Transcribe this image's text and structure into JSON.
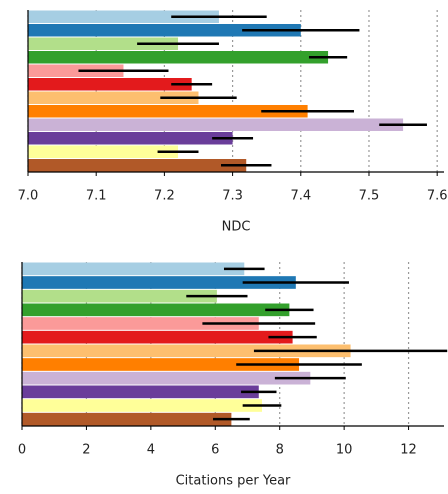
{
  "chart_data": [
    {
      "type": "bar",
      "orientation": "horizontal",
      "xlabel": "NDC",
      "categories": [
        null,
        null,
        null,
        null,
        null,
        null,
        null,
        null,
        null,
        null,
        null,
        null
      ],
      "values": [
        7.28,
        7.4,
        7.22,
        7.44,
        7.14,
        7.24,
        7.25,
        7.41,
        7.55,
        7.3,
        7.22,
        7.32
      ],
      "errors": [
        0.07,
        0.086,
        0.06,
        0.028,
        0.066,
        0.03,
        0.056,
        0.068,
        0.035,
        0.03,
        0.03,
        0.037
      ],
      "colors": [
        "#a6cee3",
        "#1f78b4",
        "#b2df8a",
        "#33a02c",
        "#fb9a99",
        "#e31a1c",
        "#fdbf6f",
        "#ff7f00",
        "#cab2d6",
        "#6a3d9a",
        "#ffff99",
        "#b15928"
      ],
      "xlim": [
        7.0,
        7.61
      ],
      "xticks": [
        {
          "value": 7,
          "label": "7.0"
        },
        7.1,
        7.2,
        7.3,
        7.4,
        7.5,
        7.6
      ],
      "grid": true
    },
    {
      "type": "bar",
      "orientation": "horizontal",
      "xlabel": "Citations per Year",
      "categories": [
        null,
        null,
        null,
        null,
        null,
        null,
        null,
        null,
        null,
        null,
        null,
        null
      ],
      "values": [
        6.9,
        8.5,
        6.05,
        8.3,
        7.35,
        8.4,
        10.2,
        8.6,
        8.95,
        7.35,
        7.45,
        6.5
      ],
      "errors": [
        0.63,
        1.65,
        0.95,
        0.75,
        1.75,
        0.75,
        3.0,
        1.95,
        1.1,
        0.55,
        0.6,
        0.57
      ],
      "colors": [
        "#a6cee3",
        "#1f78b4",
        "#b2df8a",
        "#33a02c",
        "#fb9a99",
        "#e31a1c",
        "#fdbf6f",
        "#ff7f00",
        "#cab2d6",
        "#6a3d9a",
        "#ffff99",
        "#b15928"
      ],
      "xlim": [
        0,
        13.1
      ],
      "xticks": [
        0,
        2,
        4,
        6,
        8,
        10,
        12
      ],
      "grid": true
    }
  ]
}
